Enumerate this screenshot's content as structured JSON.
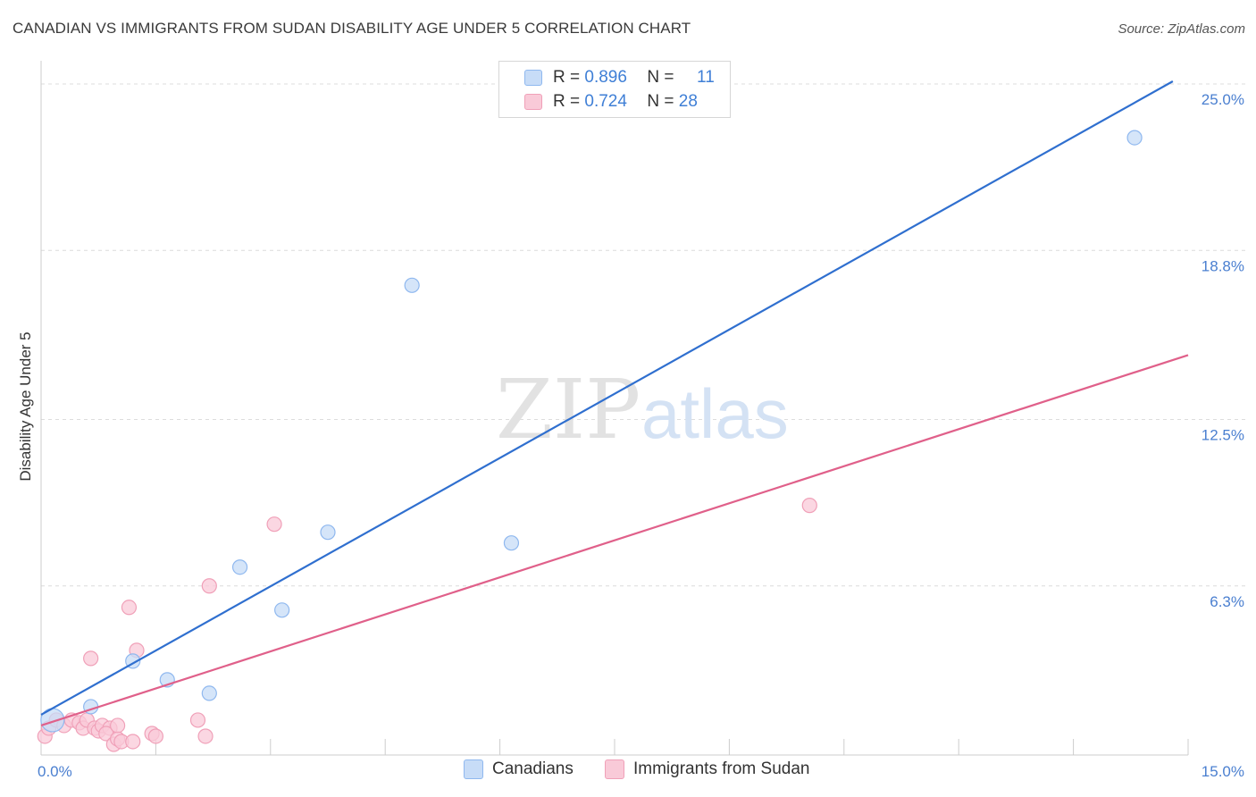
{
  "title": "CANADIAN VS IMMIGRANTS FROM SUDAN DISABILITY AGE UNDER 5 CORRELATION CHART",
  "source": "Source: ZipAtlas.com",
  "watermark": {
    "zip": "ZIP",
    "atlas": "atlas"
  },
  "legend": {
    "rows": [
      {
        "r_label": "R =",
        "r_value": "0.896",
        "n_label": "N =",
        "n_value": "11",
        "color": "#8fb8ef",
        "fill": "#c7dcf7"
      },
      {
        "r_label": "R =",
        "r_value": "0.724",
        "n_label": "N =",
        "n_value": "28",
        "color": "#f0a0b8",
        "fill": "#f9cad8"
      }
    ]
  },
  "bottom_legend": {
    "series1": "Canadians",
    "series2": "Immigrants from Sudan"
  },
  "chart_data": {
    "type": "scatter",
    "title": "CANADIAN VS IMMIGRANTS FROM SUDAN DISABILITY AGE UNDER 5 CORRELATION CHART",
    "xlabel": "",
    "ylabel": "Disability Age Under 5",
    "xlim": [
      0,
      15
    ],
    "ylim": [
      0,
      25.6
    ],
    "x_tick_labels": {
      "min": "0.0%",
      "max": "15.0%"
    },
    "y_ticks": [
      6.3,
      12.5,
      18.8,
      25.0
    ],
    "y_tick_labels": [
      "6.3%",
      "12.5%",
      "18.8%",
      "25.0%"
    ],
    "series": [
      {
        "name": "Canadians",
        "color": "#2f6fcf",
        "marker_fill": "#c7dcf7",
        "marker_stroke": "#8fb8ef",
        "points": [
          [
            0.15,
            1.3
          ],
          [
            0.65,
            1.8
          ],
          [
            1.2,
            3.5
          ],
          [
            1.65,
            2.8
          ],
          [
            2.2,
            2.3
          ],
          [
            2.6,
            7.0
          ],
          [
            3.15,
            5.4
          ],
          [
            3.75,
            8.3
          ],
          [
            4.85,
            17.5
          ],
          [
            6.15,
            7.9
          ],
          [
            14.3,
            23.0
          ]
        ],
        "trend": [
          [
            0.0,
            1.5
          ],
          [
            14.8,
            25.1
          ]
        ]
      },
      {
        "name": "Immigrants from Sudan",
        "color": "#e0608a",
        "marker_fill": "#f9cad8",
        "marker_stroke": "#f0a0b8",
        "points": [
          [
            0.05,
            0.7
          ],
          [
            0.1,
            1.0
          ],
          [
            0.2,
            1.3
          ],
          [
            0.3,
            1.1
          ],
          [
            0.4,
            1.3
          ],
          [
            0.5,
            1.2
          ],
          [
            0.55,
            1.0
          ],
          [
            0.6,
            1.3
          ],
          [
            0.7,
            1.0
          ],
          [
            0.75,
            0.9
          ],
          [
            0.8,
            1.1
          ],
          [
            0.9,
            1.0
          ],
          [
            0.65,
            3.6
          ],
          [
            0.85,
            0.8
          ],
          [
            0.95,
            0.4
          ],
          [
            1.0,
            0.6
          ],
          [
            1.05,
            0.5
          ],
          [
            1.15,
            5.5
          ],
          [
            1.2,
            0.5
          ],
          [
            1.25,
            3.9
          ],
          [
            1.45,
            0.8
          ],
          [
            1.5,
            0.7
          ],
          [
            2.05,
            1.3
          ],
          [
            2.15,
            0.7
          ],
          [
            2.2,
            6.3
          ],
          [
            3.05,
            8.6
          ],
          [
            10.05,
            9.3
          ],
          [
            1.0,
            1.1
          ]
        ],
        "trend": [
          [
            0.0,
            1.1
          ],
          [
            15.0,
            14.9
          ]
        ]
      }
    ]
  }
}
